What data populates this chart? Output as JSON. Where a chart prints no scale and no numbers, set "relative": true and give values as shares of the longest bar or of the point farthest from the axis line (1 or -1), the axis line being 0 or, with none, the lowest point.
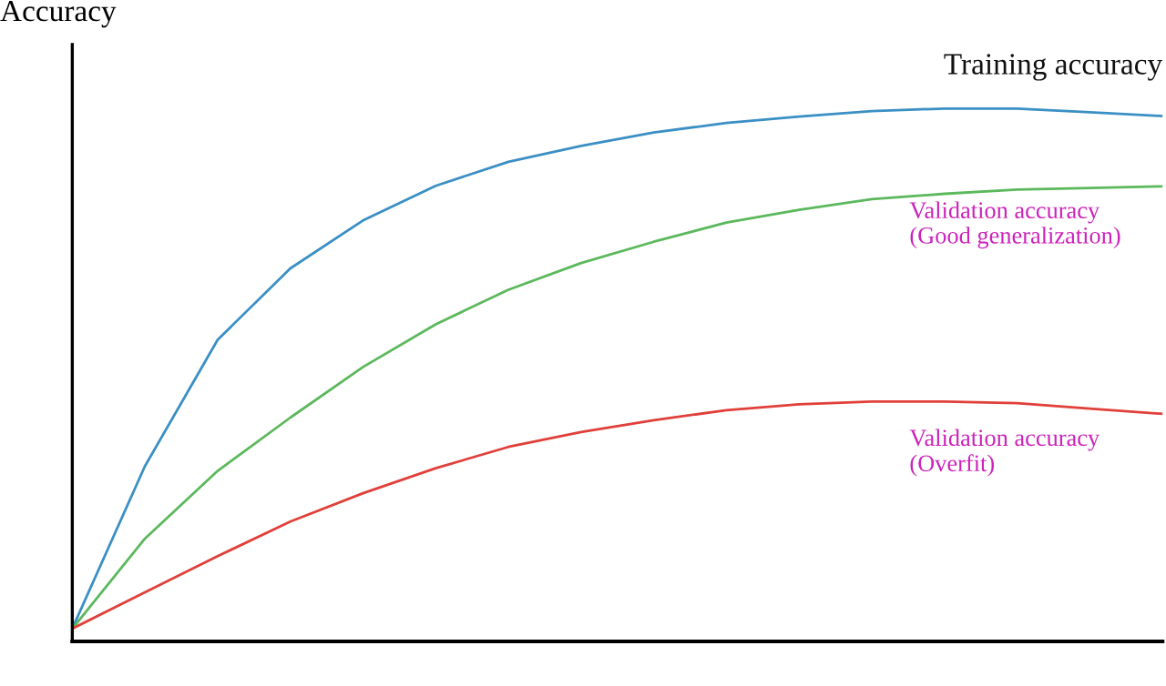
{
  "chart_data": {
    "type": "line",
    "relative": true,
    "ylabel": "Accuracy",
    "grid": false,
    "legend": false,
    "marker": "none",
    "line_style": "solid",
    "categories": [
      null,
      null,
      null,
      null,
      null,
      null,
      null,
      null,
      null,
      null,
      null,
      null,
      null,
      null,
      null,
      null
    ],
    "series": [
      {
        "name": "Training accuracy",
        "color": "#3a8fc4",
        "values": [
          0.024,
          0.329,
          0.566,
          0.7,
          0.79,
          0.855,
          0.9,
          0.93,
          0.955,
          0.973,
          0.985,
          0.995,
          1.0,
          1.0,
          0.993,
          0.986
        ]
      },
      {
        "name": "Validation accuracy\n(Good generalization)",
        "color": "#5cb85c",
        "values": [
          0.024,
          0.193,
          0.32,
          0.42,
          0.515,
          0.595,
          0.66,
          0.71,
          0.75,
          0.786,
          0.81,
          0.83,
          0.84,
          0.848,
          0.851,
          0.854
        ]
      },
      {
        "name": "Validation accuracy\n(Overfit)",
        "color": "#e0403a",
        "values": [
          0.024,
          0.092,
          0.16,
          0.225,
          0.278,
          0.325,
          0.365,
          0.393,
          0.415,
          0.434,
          0.445,
          0.45,
          0.45,
          0.447,
          0.437,
          0.427
        ]
      }
    ]
  }
}
